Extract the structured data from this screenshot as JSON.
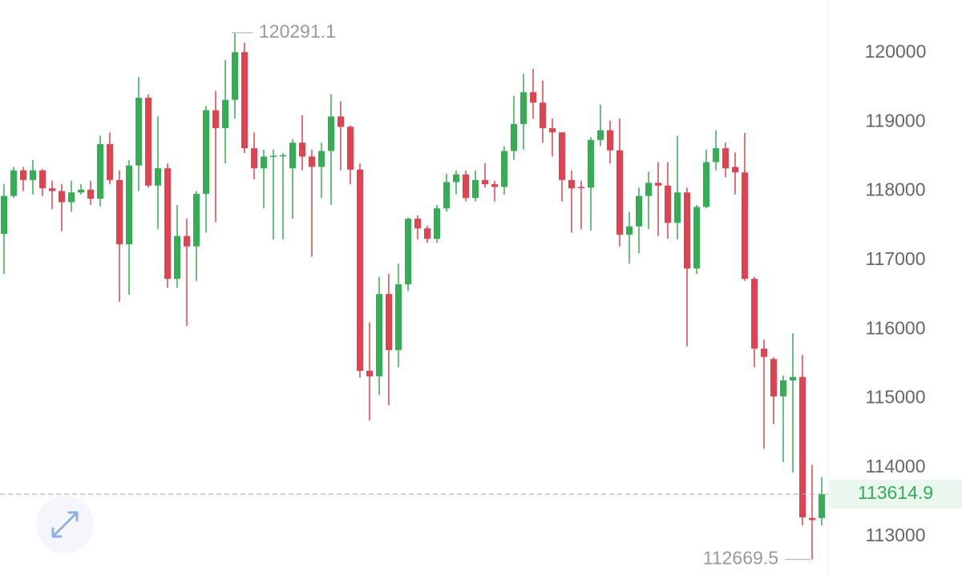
{
  "chart_data": {
    "type": "candlestick",
    "up_color": "#34ad55",
    "down_color": "#e0424f",
    "open": [
      117380,
      117930,
      118300,
      118160,
      118300,
      118040,
      118000,
      117840,
      117980,
      118020,
      117890,
      118680,
      118160,
      117230,
      118370,
      119350,
      118080,
      118330,
      116730,
      117350,
      117200,
      117960,
      119170,
      118910,
      119320,
      120010,
      118620,
      118330,
      118500,
      118510,
      118330,
      118700,
      118500,
      118350,
      118580,
      119080,
      118930,
      118310,
      115400,
      115320,
      116510,
      115700,
      116650,
      117600,
      117460,
      117310,
      117750,
      118130,
      118240,
      117900,
      118160,
      118100,
      118060,
      118580,
      118970,
      119430,
      119280,
      118910,
      118850,
      118160,
      118060,
      118050,
      118740,
      118880,
      118590,
      117370,
      117490,
      117930,
      118120,
      118080,
      117540,
      117980,
      116880,
      117770,
      118420,
      118620,
      118350,
      118270,
      116730,
      115720,
      115570,
      115030,
      115260,
      115310,
      113270,
      113270
    ],
    "high": [
      118100,
      118350,
      118350,
      118450,
      118320,
      118150,
      118100,
      118150,
      118100,
      118150,
      118800,
      118850,
      118300,
      118450,
      119650,
      119400,
      119080,
      118400,
      117800,
      117600,
      118000,
      119230,
      119450,
      119900,
      120291.1,
      120150,
      118850,
      118600,
      118600,
      118550,
      118750,
      119100,
      118600,
      118700,
      119400,
      119300,
      118950,
      118400,
      116100,
      116760,
      116800,
      116950,
      117620,
      117650,
      117500,
      117800,
      118250,
      118300,
      118300,
      118300,
      118400,
      118150,
      118650,
      119380,
      119700,
      119770,
      119600,
      119050,
      118850,
      118300,
      118150,
      118780,
      119250,
      119020,
      119050,
      117700,
      118050,
      118280,
      118420,
      118420,
      118800,
      118050,
      117800,
      118600,
      118880,
      118700,
      118560,
      118840,
      116760,
      115850,
      115600,
      115330,
      115940,
      115630,
      114040,
      113860
    ],
    "low": [
      116800,
      117900,
      118000,
      117950,
      117930,
      117740,
      117420,
      117700,
      117950,
      117800,
      117780,
      118100,
      116400,
      116500,
      118000,
      118050,
      117450,
      116600,
      116600,
      116050,
      116700,
      117400,
      117550,
      118400,
      119050,
      118550,
      118170,
      117750,
      117300,
      117300,
      117600,
      118300,
      117050,
      117900,
      117800,
      118300,
      118100,
      115300,
      114680,
      115050,
      114900,
      115450,
      116550,
      117300,
      117250,
      117250,
      117700,
      117950,
      117850,
      117850,
      118050,
      117850,
      117950,
      118450,
      118600,
      119050,
      118700,
      118500,
      117850,
      117400,
      117450,
      117430,
      118650,
      118400,
      117200,
      116950,
      117100,
      117450,
      117350,
      117310,
      117300,
      115750,
      116800,
      117750,
      118300,
      118200,
      117950,
      116700,
      115450,
      114270,
      114630,
      114080,
      113930,
      113160,
      112669.5,
      113160
    ],
    "close": [
      117930,
      118300,
      118160,
      118300,
      118040,
      118000,
      117840,
      117980,
      118020,
      117890,
      118680,
      118160,
      117230,
      118370,
      119350,
      118080,
      118330,
      116730,
      117350,
      117200,
      117960,
      119170,
      118910,
      119320,
      120010,
      118620,
      118330,
      118500,
      118510,
      118520,
      118700,
      118500,
      118350,
      118580,
      119080,
      118930,
      118310,
      115400,
      115320,
      116510,
      115700,
      116650,
      117600,
      117460,
      117310,
      117750,
      118130,
      118240,
      117900,
      118160,
      118100,
      118060,
      118580,
      118970,
      119430,
      119280,
      118910,
      118850,
      118160,
      118040,
      118050,
      118740,
      118880,
      118590,
      117370,
      117490,
      117930,
      118120,
      118080,
      117540,
      117980,
      116880,
      117770,
      118420,
      118620,
      118330,
      118270,
      116730,
      115720,
      115600,
      115030,
      115260,
      115310,
      113280,
      113240,
      113614.9
    ],
    "ylim": [
      112445,
      120765
    ],
    "yticks": [
      113000,
      114000,
      115000,
      116000,
      117000,
      118000,
      119000,
      120000
    ],
    "max_label": 120291.1,
    "min_label": 112669.5,
    "last_price": 113614.9
  }
}
